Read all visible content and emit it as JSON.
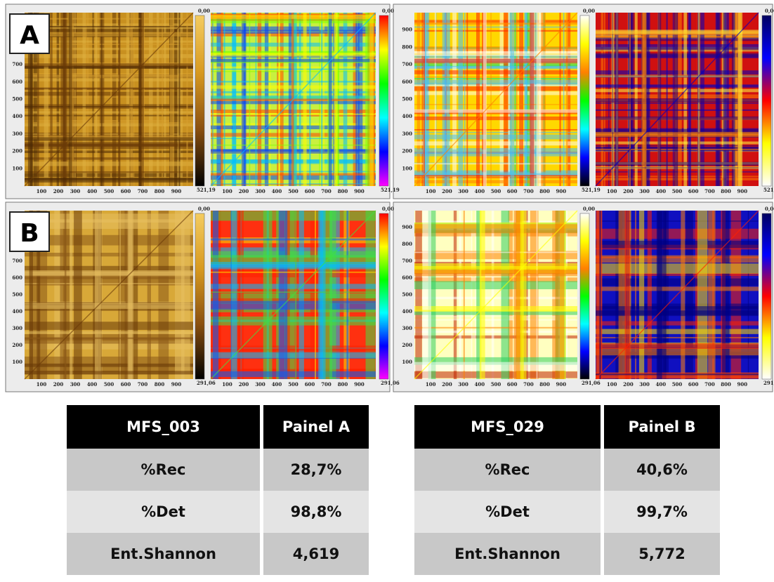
{
  "panels": [
    {
      "label": "A",
      "colorbar_top": "0,00",
      "colorbar_bottom": "521,19"
    },
    {
      "label": "B",
      "colorbar_top": "0,00",
      "colorbar_bottom": "291,06"
    }
  ],
  "axis_tick_labels": [
    "100",
    "200",
    "300",
    "400",
    "500",
    "600",
    "700",
    "800",
    "900"
  ],
  "tables": [
    {
      "header": [
        "MFS_003",
        "Painel A"
      ],
      "rows": [
        [
          "%Rec",
          "28,7%"
        ],
        [
          "%Det",
          "98,8%"
        ],
        [
          "Ent.Shannon",
          "4,619"
        ]
      ]
    },
    {
      "header": [
        "MFS_029",
        "Painel B"
      ],
      "rows": [
        [
          "%Rec",
          "40,6%"
        ],
        [
          "%Det",
          "99,7%"
        ],
        [
          "Ent.Shannon",
          "5,772"
        ]
      ]
    }
  ]
}
